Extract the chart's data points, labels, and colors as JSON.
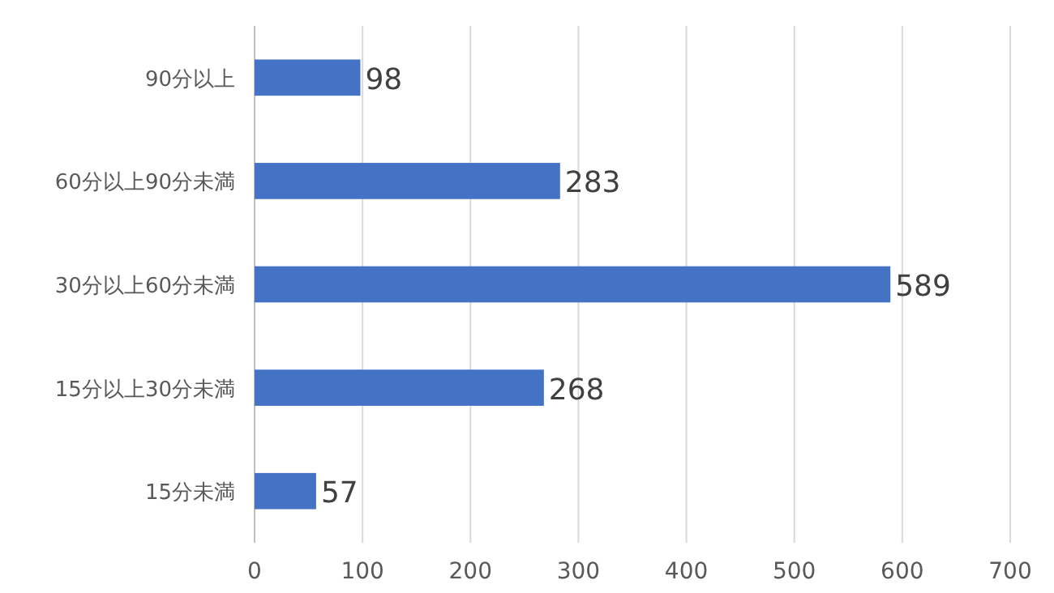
{
  "chart_data": {
    "type": "bar",
    "orientation": "horizontal",
    "categories": [
      "90分以上",
      "60分以上90分未満",
      "30分以上60分未満",
      "15分以上30分未満",
      "15分未満"
    ],
    "values": [
      98,
      283,
      589,
      268,
      57
    ],
    "color": "#4472c4",
    "xlim": [
      0,
      700
    ],
    "xticks": [
      0,
      100,
      200,
      300,
      400,
      500,
      600,
      700
    ],
    "grid": "x",
    "data_labels": true
  }
}
